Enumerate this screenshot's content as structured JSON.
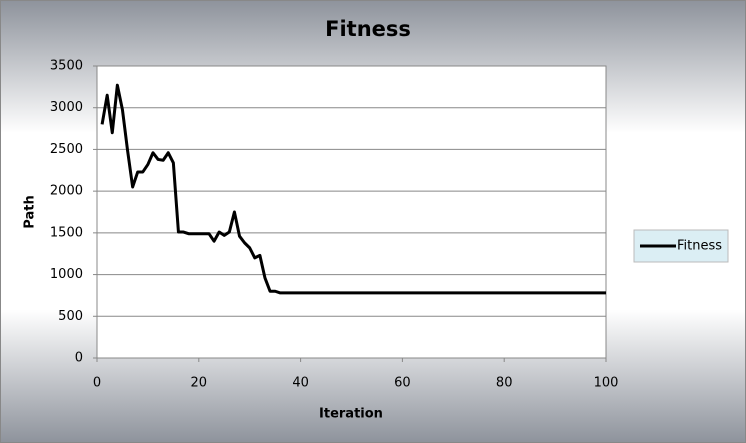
{
  "chart_data": {
    "type": "line",
    "title": "Fitness",
    "x_label": "Iteration",
    "y_label": "Path",
    "x": [
      1,
      2,
      3,
      4,
      5,
      6,
      7,
      8,
      9,
      10,
      11,
      12,
      13,
      14,
      15,
      16,
      17,
      18,
      19,
      20,
      21,
      22,
      23,
      24,
      25,
      26,
      27,
      28,
      29,
      30,
      31,
      32,
      33,
      34,
      35,
      36,
      37,
      38,
      39,
      40,
      41,
      42,
      43,
      44,
      45,
      46,
      47,
      48,
      49,
      50,
      51,
      52,
      53,
      54,
      55,
      56,
      57,
      58,
      59,
      60,
      61,
      62,
      63,
      64,
      65,
      66,
      67,
      68,
      69,
      70,
      71,
      72,
      73,
      74,
      75,
      76,
      77,
      78,
      79,
      80,
      81,
      82,
      83,
      84,
      85,
      86,
      87,
      88,
      89,
      90,
      91,
      92,
      93,
      94,
      95,
      96,
      97,
      98,
      99,
      100
    ],
    "series": [
      {
        "name": "Fitness",
        "color": "#000000",
        "values": [
          2800,
          3150,
          2700,
          3270,
          2975,
          2490,
          2050,
          2230,
          2230,
          2320,
          2460,
          2380,
          2370,
          2460,
          2340,
          1510,
          1510,
          1490,
          1490,
          1490,
          1490,
          1490,
          1400,
          1510,
          1470,
          1510,
          1750,
          1460,
          1380,
          1320,
          1200,
          1230,
          960,
          800,
          800,
          780,
          780,
          780,
          780,
          780,
          780,
          780,
          780,
          780,
          780,
          780,
          780,
          780,
          780,
          780,
          780,
          780,
          780,
          780,
          780,
          780,
          780,
          780,
          780,
          780,
          780,
          780,
          780,
          780,
          780,
          780,
          780,
          780,
          780,
          780,
          780,
          780,
          780,
          780,
          780,
          780,
          780,
          780,
          780,
          780,
          780,
          780,
          780,
          780,
          780,
          780,
          780,
          780,
          780,
          780,
          780,
          780,
          780,
          780,
          780,
          780,
          780,
          780,
          780,
          780
        ]
      }
    ],
    "xlim": [
      0,
      100
    ],
    "xticks": [
      0,
      20,
      40,
      60,
      80,
      100
    ],
    "ylim": [
      0,
      3500
    ],
    "yticks": [
      0,
      500,
      1000,
      1500,
      2000,
      2500,
      3000,
      3500
    ],
    "grid": true,
    "legend": "right"
  }
}
